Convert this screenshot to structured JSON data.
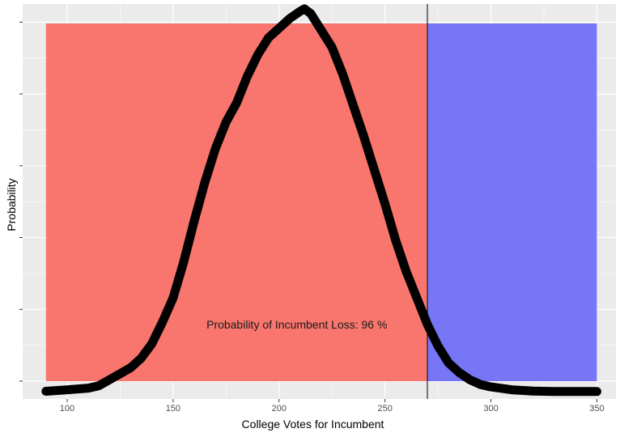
{
  "chart_data": {
    "type": "line",
    "title": "",
    "xlabel": "College Votes for Incumbent",
    "ylabel": "Probability",
    "xlim": [
      79,
      359
    ],
    "ylim": [
      -0.0003,
      0.0161
    ],
    "x_ticks": [
      100,
      150,
      200,
      250,
      300,
      350
    ],
    "y_tick_count": 6,
    "y_tick_labels_visible": false,
    "grid": true,
    "threshold_x": 270,
    "regions": [
      {
        "name": "loss",
        "x_range": [
          90,
          270
        ],
        "color": "#f8766d"
      },
      {
        "name": "win",
        "x_range": [
          270,
          350
        ],
        "color": "#7676f6"
      }
    ],
    "series": [
      {
        "x": [
          90,
          100,
          110,
          115,
          120,
          125,
          130,
          135,
          140,
          145,
          150,
          155,
          160,
          165,
          170,
          175,
          180,
          185,
          190,
          195,
          200,
          205,
          210,
          212,
          215,
          220,
          225,
          230,
          235,
          240,
          245,
          250,
          255,
          260,
          265,
          270,
          275,
          280,
          285,
          290,
          295,
          300,
          310,
          320,
          330,
          340,
          350
        ],
        "y": [
          2e-05,
          8e-05,
          0.00015,
          0.00025,
          0.0005,
          0.00075,
          0.001,
          0.0014,
          0.002,
          0.0029,
          0.0039,
          0.0054,
          0.0071,
          0.0087,
          0.0101,
          0.0112,
          0.012,
          0.0131,
          0.014,
          0.0147,
          0.0151,
          0.0155,
          0.0158,
          0.0159,
          0.0157,
          0.015,
          0.0143,
          0.0132,
          0.0119,
          0.0106,
          0.0092,
          0.0078,
          0.0063,
          0.005,
          0.0039,
          0.0028,
          0.0019,
          0.0012,
          0.0008,
          0.0005,
          0.0003,
          0.0002,
          8e-05,
          3e-05,
          1e-05,
          1e-05,
          1e-05
        ]
      }
    ],
    "annotation": "Probability of Incumbent Loss:  96 %"
  }
}
